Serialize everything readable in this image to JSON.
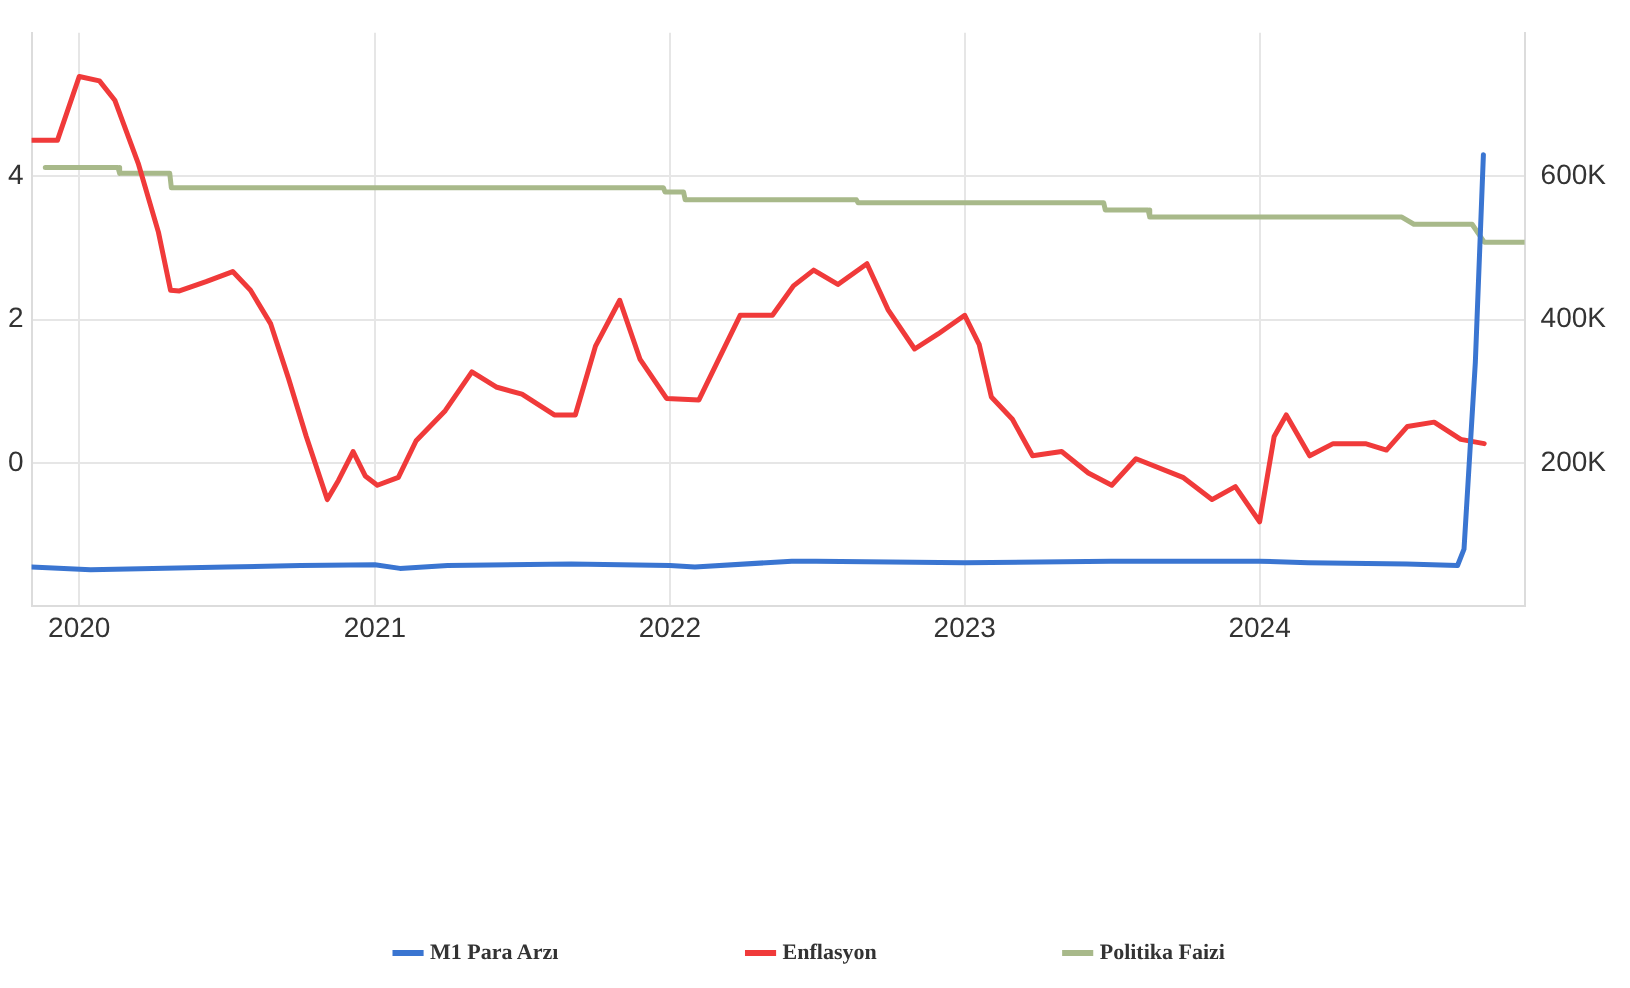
{
  "chart_data": {
    "type": "line",
    "xlim": [
      "2019-11-03",
      "2024-11-24"
    ],
    "xticks": [
      "2020",
      "2021",
      "2022",
      "2023",
      "2024"
    ],
    "ylim": [
      -2,
      6
    ],
    "yticks": [
      0,
      2,
      4
    ],
    "y2lim": [
      0,
      800000
    ],
    "y2ticks": [
      {
        "value": 200000,
        "label": "200K"
      },
      {
        "value": 400000,
        "label": "400K"
      },
      {
        "value": 600000,
        "label": "600K"
      }
    ],
    "grid": true,
    "legend": "bottom",
    "marker": "none",
    "line_style": "solid",
    "series": [
      {
        "name": "M1 Para Arzı",
        "color": "#3a75d1",
        "axis": "y2",
        "x": [
          "2019-11-03",
          "2020-01-15",
          "2020-04-01",
          "2020-07-01",
          "2020-10-01",
          "2021-01-01",
          "2021-02-01",
          "2021-04-01",
          "2021-09-01",
          "2022-01-01",
          "2022-02-01",
          "2022-06-01",
          "2022-07-01",
          "2023-01-01",
          "2023-07-01",
          "2024-01-01",
          "2024-03-01",
          "2024-07-01",
          "2024-09-02",
          "2024-09-10",
          "2024-09-24",
          "2024-10-04"
        ],
        "values": [
          55000,
          51000,
          53000,
          55000,
          57000,
          58000,
          53000,
          57000,
          59000,
          57000,
          55000,
          63000,
          63000,
          61000,
          63000,
          63000,
          61000,
          59000,
          57000,
          80000,
          340000,
          630000
        ]
      },
      {
        "name": "Enflasyon",
        "color": "#f03a3a",
        "x": [
          "2019-11-03",
          "2019-12-05",
          "2020-01-01",
          "2020-01-26",
          "2020-02-14",
          "2020-03-14",
          "2020-04-08",
          "2020-04-23",
          "2020-05-04",
          "2020-06-06",
          "2020-07-09",
          "2020-07-31",
          "2020-08-25",
          "2020-09-16",
          "2020-10-08",
          "2020-11-03",
          "2020-11-17",
          "2020-12-05",
          "2020-12-20",
          "2021-01-04",
          "2021-01-30",
          "2021-02-21",
          "2021-03-29",
          "2021-05-01",
          "2021-05-31",
          "2021-07-02",
          "2021-08-11",
          "2021-09-06",
          "2021-10-01",
          "2021-10-31",
          "2021-11-25",
          "2021-12-28",
          "2022-02-06",
          "2022-02-28",
          "2022-03-29",
          "2022-05-08",
          "2022-06-03",
          "2022-06-28",
          "2022-07-28",
          "2022-09-02",
          "2022-09-28",
          "2022-10-31",
          "2022-11-29",
          "2023-01-01",
          "2023-01-19",
          "2023-02-03",
          "2023-03-01",
          "2023-03-26",
          "2023-05-01",
          "2023-06-03",
          "2023-07-02",
          "2023-08-01",
          "2023-09-28",
          "2023-11-03",
          "2023-12-02",
          "2024-01-01",
          "2024-01-19",
          "2024-02-03",
          "2024-03-03",
          "2024-04-01",
          "2024-05-11",
          "2024-06-06",
          "2024-07-02",
          "2024-08-04",
          "2024-09-06",
          "2024-10-05"
        ],
        "values": [
          4.5,
          4.5,
          5.39,
          5.33,
          5.06,
          4.18,
          3.22,
          2.41,
          2.4,
          2.53,
          2.67,
          2.41,
          1.94,
          1.18,
          0.37,
          -0.51,
          -0.24,
          0.16,
          -0.18,
          -0.31,
          -0.2,
          0.31,
          0.73,
          1.27,
          1.06,
          0.96,
          0.67,
          0.67,
          1.63,
          2.27,
          1.45,
          0.9,
          0.88,
          1.39,
          2.06,
          2.06,
          2.47,
          2.69,
          2.49,
          2.78,
          2.14,
          1.59,
          1.8,
          2.06,
          1.65,
          0.92,
          0.61,
          0.1,
          0.16,
          -0.14,
          -0.31,
          0.06,
          -0.2,
          -0.51,
          -0.33,
          -0.82,
          0.37,
          0.67,
          0.1,
          0.27,
          0.27,
          0.18,
          0.51,
          0.57,
          0.33,
          0.27
        ]
      },
      {
        "name": "Politika Faizi",
        "color": "#a8b98a",
        "x": [
          "2019-11-20",
          "2020-02-18",
          "2020-02-20",
          "2020-04-22",
          "2020-04-24",
          "2021-12-24",
          "2021-12-26",
          "2022-01-18",
          "2022-01-20",
          "2022-08-20",
          "2022-08-22",
          "2023-06-22",
          "2023-06-24",
          "2023-08-16",
          "2023-08-18",
          "2024-06-25",
          "2024-07-10",
          "2024-09-20",
          "2024-10-05",
          "2024-11-24"
        ],
        "values": [
          4.12,
          4.12,
          4.04,
          4.04,
          3.84,
          3.84,
          3.78,
          3.78,
          3.67,
          3.67,
          3.63,
          3.63,
          3.53,
          3.53,
          3.43,
          3.43,
          3.33,
          3.33,
          3.08,
          3.08
        ]
      }
    ]
  }
}
